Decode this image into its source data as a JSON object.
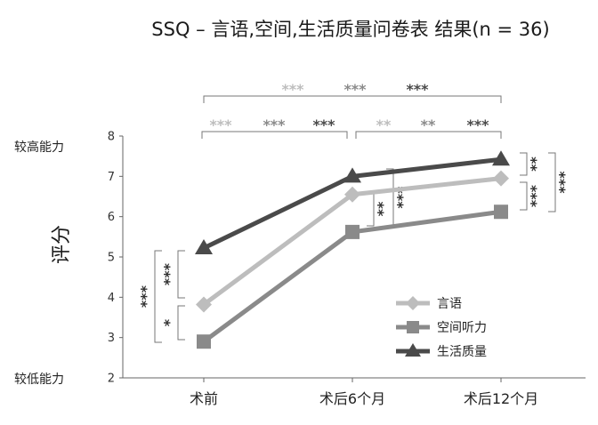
{
  "chart_data": {
    "type": "line",
    "title": "SSQ – 言语,空间,生活质量问卷表  结果(n = 36)",
    "ylabel": "评分",
    "ylim": [
      2,
      8
    ],
    "yticks": [
      2,
      3,
      4,
      5,
      6,
      7,
      8
    ],
    "y_top_caption": "较高能力",
    "y_bottom_caption": "较低能力",
    "categories": [
      "术前",
      "术后6个月",
      "术后12个月"
    ],
    "series": [
      {
        "name": "言语",
        "marker": "diamond",
        "color": "#bdbdbd",
        "values": [
          3.82,
          6.55,
          6.95
        ]
      },
      {
        "name": "空间听力",
        "marker": "square",
        "color": "#8a8a8a",
        "values": [
          2.9,
          5.62,
          6.12
        ]
      },
      {
        "name": "生活质量",
        "marker": "triangle",
        "color": "#4a4a4a",
        "values": [
          5.22,
          7.0,
          7.42
        ]
      }
    ],
    "legend_position": "bottom-right",
    "significance": {
      "top_bracket": [
        "***",
        "***",
        "***"
      ],
      "pre_vs_6m": [
        "***",
        "***",
        "***"
      ],
      "m6_vs_12m": [
        "**",
        "**",
        "***"
      ],
      "pre_pairs": {
        "speech_vs_quality": "***",
        "speech_vs_spatial": "*",
        "spatial_vs_quality": "***"
      },
      "m6_pairs": {
        "speech_vs_spatial": "**",
        "spatial_vs_quality": "***"
      },
      "m12_pairs": {
        "speech_vs_quality": "**",
        "speech_vs_spatial": "***",
        "spatial_vs_quality": "***"
      }
    }
  }
}
